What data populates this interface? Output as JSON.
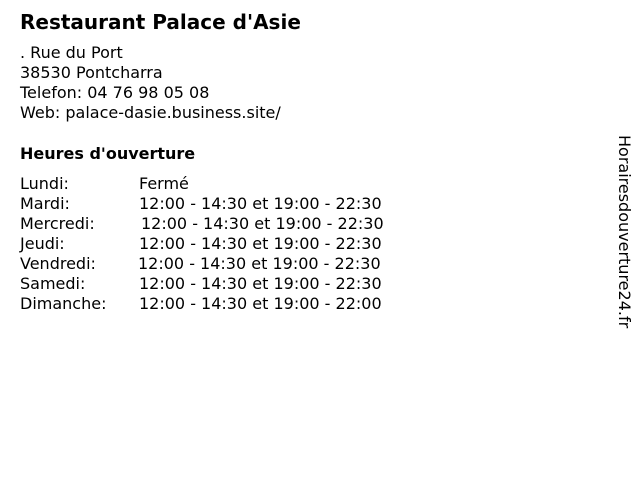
{
  "title": "Restaurant Palace d'Asie",
  "address": {
    "street": ". Rue du Port",
    "city": "38530 Pontcharra",
    "phone": "Telefon: 04 76 98 05 08",
    "web": "Web: palace-dasie.business.site/"
  },
  "hours_title": "Heures d'ouverture",
  "hours": [
    {
      "day": "Lundi:",
      "time": "Fermé"
    },
    {
      "day": "Mardi:",
      "time": "12:00 - 14:30 et 19:00 - 22:30"
    },
    {
      "day": "Mercredi:",
      "time": "12:00 - 14:30 et 19:00 - 22:30"
    },
    {
      "day": "Jeudi:",
      "time": "12:00 - 14:30 et 19:00 - 22:30"
    },
    {
      "day": "Vendredi:",
      "time": "12:00 - 14:30 et 19:00 - 22:30"
    },
    {
      "day": "Samedi:",
      "time": "12:00 - 14:30 et 19:00 - 22:30"
    },
    {
      "day": "Dimanche:",
      "time": "12:00 - 14:30 et 19:00 - 22:00"
    }
  ],
  "side_label": "Horairesdouverture24.fr"
}
